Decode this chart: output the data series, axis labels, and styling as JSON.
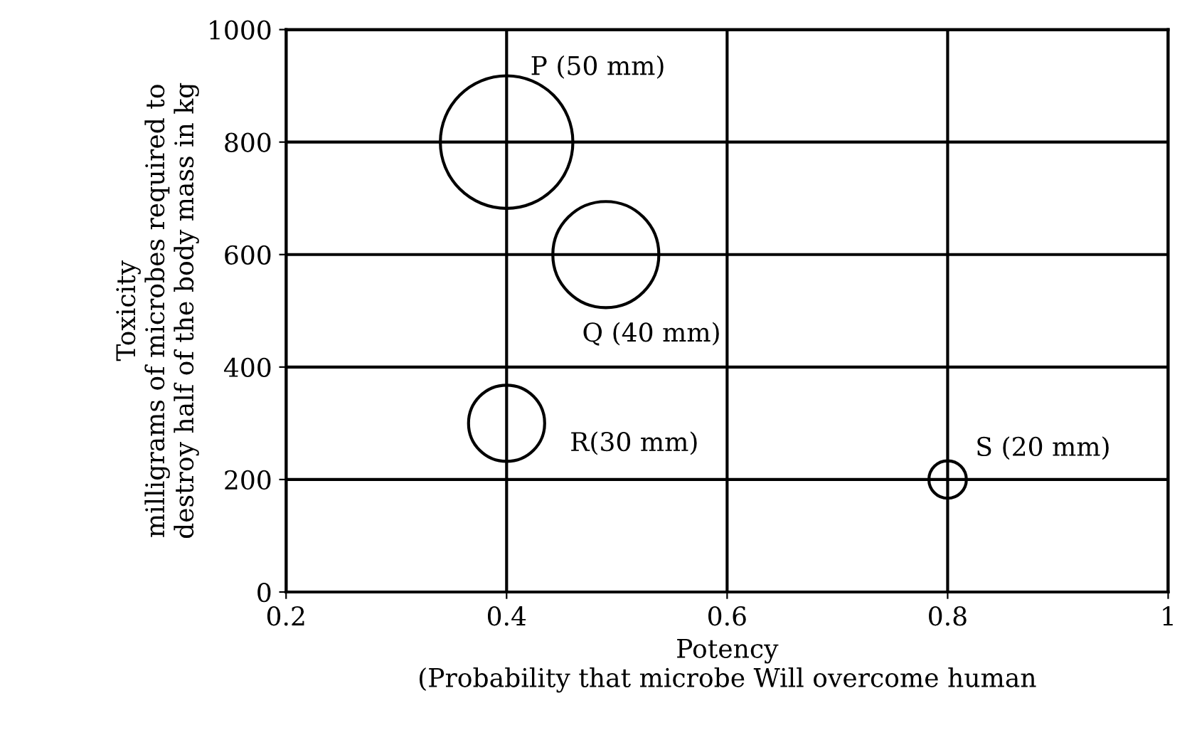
{
  "chart_data": {
    "type": "bubble",
    "xlabel": "Potency\n(Probability that microbe Will overcome human",
    "ylabel": "Toxicity\nmilligrams of microbes required to\ndestroy half of the body mass in kg",
    "x": [
      0.4,
      0.49,
      0.4,
      0.8
    ],
    "values": [
      800,
      600,
      300,
      200
    ],
    "sizes": [
      1,
      0.64,
      0.33,
      0.08
    ],
    "color": "#000000",
    "xlim": [
      0.2,
      1.0
    ],
    "xticks": [
      0.2,
      0.4,
      0.6,
      0.8,
      1
    ],
    "ylim": [
      0,
      1000
    ],
    "yticks": [
      0,
      200,
      400,
      600,
      800,
      1000
    ],
    "grid": true,
    "annotations": [
      {
        "text": "P (50 mm)",
        "x": 0.4,
        "y": 800
      },
      {
        "text": "Q (40 mm)",
        "x": 0.49,
        "y": 600
      },
      {
        "text": "R(30 mm)",
        "x": 0.4,
        "y": 300
      },
      {
        "text": "S (20 mm)",
        "x": 0.8,
        "y": 200
      }
    ]
  }
}
